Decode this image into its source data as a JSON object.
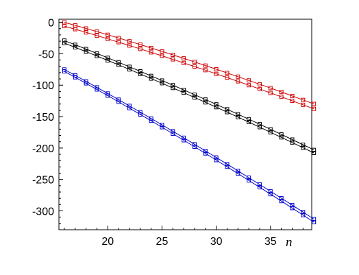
{
  "chart_data": {
    "type": "line",
    "title": "",
    "xlabel": "n",
    "ylabel": "",
    "xlim": [
      15.5,
      38.8
    ],
    "ylim": [
      -330,
      5
    ],
    "grid": false,
    "x_ticks": [
      20,
      25,
      30,
      35
    ],
    "y_ticks": [
      0,
      -50,
      -100,
      -150,
      -200,
      -250,
      -300
    ],
    "x_tick_labels": [
      "20",
      "25",
      "30",
      "35"
    ],
    "y_tick_labels": [
      "0",
      "-50",
      "-100",
      "-150",
      "-200",
      "-250",
      "-300"
    ],
    "marker": "square",
    "x": [
      16,
      17,
      18,
      19,
      20,
      21,
      22,
      23,
      24,
      25,
      26,
      27,
      28,
      29,
      30,
      31,
      32,
      33,
      34,
      35,
      36,
      37,
      38,
      39
    ],
    "series": [
      {
        "color": "#cc0000",
        "values": [
          0,
          -4.8,
          -9.7,
          -14.7,
          -19.8,
          -24.9,
          -30.1,
          -35.4,
          -40.8,
          -46.2,
          -51.7,
          -57.3,
          -63.0,
          -68.8,
          -74.6,
          -80.5,
          -86.4,
          -92.4,
          -98.5,
          -104.6,
          -110.8,
          -117.1,
          -123.4,
          -129.8
        ]
      },
      {
        "color": "#cc0000",
        "values": [
          -6,
          -10.9,
          -16.0,
          -21.1,
          -26.3,
          -31.6,
          -36.9,
          -42.3,
          -47.8,
          -53.3,
          -58.9,
          -64.6,
          -70.3,
          -76.1,
          -82.0,
          -87.9,
          -93.9,
          -100.0,
          -106.1,
          -112.3,
          -118.5,
          -124.8,
          -131.2,
          -137.6
        ]
      },
      {
        "color": "#000000",
        "values": [
          -29,
          -35.7,
          -42.5,
          -49.4,
          -56.4,
          -63.5,
          -70.7,
          -77.9,
          -85.2,
          -92.6,
          -100.0,
          -107.5,
          -115.1,
          -122.8,
          -130.5,
          -138.3,
          -146.2,
          -154.1,
          -162.1,
          -170.2,
          -178.3,
          -186.5,
          -194.7,
          -203.0
        ]
      },
      {
        "color": "#000000",
        "values": [
          -33,
          -39.8,
          -46.6,
          -53.6,
          -60.6,
          -67.7,
          -74.9,
          -82.2,
          -89.5,
          -96.9,
          -104.4,
          -111.9,
          -119.6,
          -127.3,
          -135.0,
          -142.9,
          -150.8,
          -158.7,
          -166.8,
          -174.9,
          -183.0,
          -191.2,
          -199.5,
          -207.8
        ]
      },
      {
        "color": "#0000cc",
        "values": [
          -75,
          -84.4,
          -93.9,
          -103.5,
          -113.2,
          -123.0,
          -132.9,
          -142.9,
          -153.0,
          -163.1,
          -173.3,
          -183.6,
          -194.0,
          -204.5,
          -215.0,
          -225.6,
          -236.3,
          -247.1,
          -257.9,
          -268.8,
          -279.8,
          -290.8,
          -301.9,
          -313.1
        ]
      },
      {
        "color": "#0000cc",
        "values": [
          -78,
          -87.5,
          -97.1,
          -106.8,
          -116.6,
          -126.5,
          -136.5,
          -146.6,
          -156.7,
          -166.9,
          -177.2,
          -187.6,
          -198.0,
          -208.6,
          -219.2,
          -229.9,
          -240.6,
          -251.5,
          -262.4,
          -273.4,
          -284.4,
          -295.5,
          -306.7,
          -318.0
        ]
      }
    ]
  }
}
